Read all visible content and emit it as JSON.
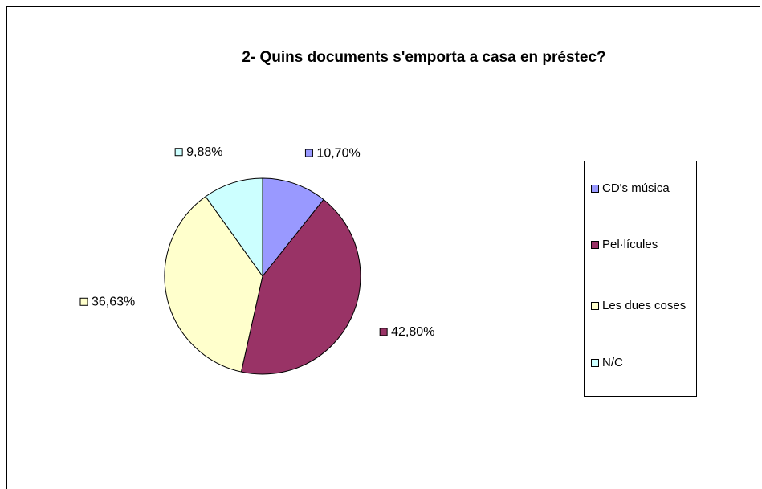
{
  "chart_data": {
    "type": "pie",
    "title": "2- Quins documents s'emporta a casa en préstec?",
    "categories": [
      "CD's música",
      "Pel·lícules",
      "Les dues coses",
      "N/C"
    ],
    "values": [
      10.7,
      42.8,
      36.63,
      9.88
    ],
    "value_labels": [
      "10,70%",
      "42,80%",
      "36,63%",
      "9,88%"
    ],
    "colors": [
      "#9999ff",
      "#993366",
      "#ffffcc",
      "#ccffff"
    ],
    "legend": "right"
  }
}
